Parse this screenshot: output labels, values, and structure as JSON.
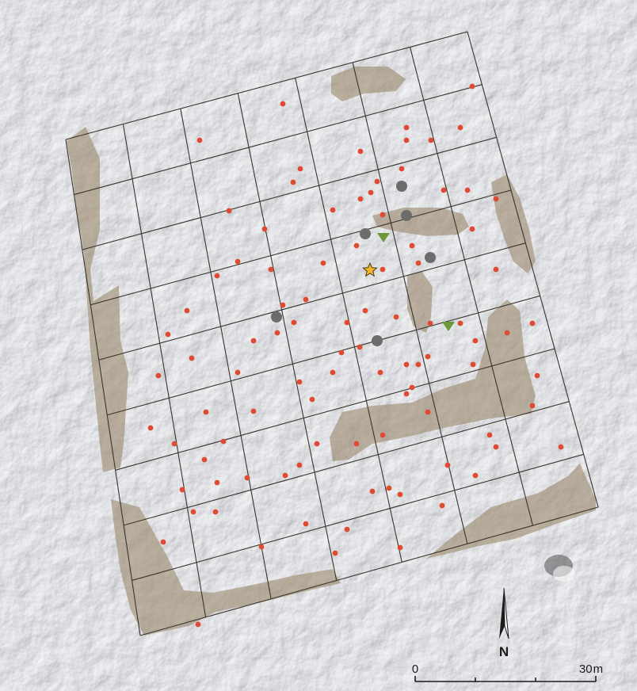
{
  "map": {
    "style": {
      "terrain_color": "#d9dcdf",
      "feature_fill": "#9d8a70",
      "grid_stroke": "#3a342c",
      "find_point_color": "#e04a33",
      "large_find_color": "#6c6c6c",
      "triangle_color": "#6a9a3a",
      "star_color": "#f5b52a"
    },
    "grid": {
      "columns": 7,
      "rows": 9
    },
    "feature_counts": {
      "small_red_finds": 96,
      "grey_finds": 7,
      "green_triangles": 2,
      "star": 1
    }
  },
  "north_arrow": {
    "label": "N"
  },
  "scale_bar": {
    "start_label": "0",
    "end_label": "30",
    "unit": "m"
  }
}
